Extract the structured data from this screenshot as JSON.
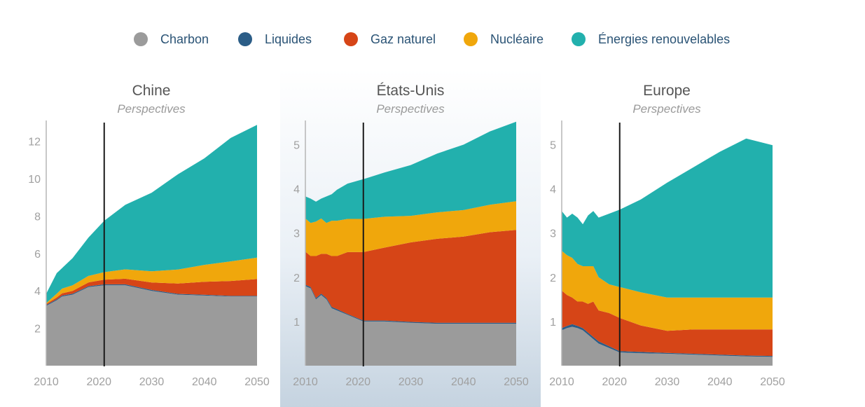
{
  "legend": [
    {
      "label": "Charbon",
      "color": "#9b9b9b"
    },
    {
      "label": "Liquides",
      "color": "#2b5d87"
    },
    {
      "label": "Gaz naturel",
      "color": "#d64517"
    },
    {
      "label": "Nucléaire",
      "color": "#f0a70c"
    },
    {
      "label": "Énergies renouvelables",
      "color": "#22b0ad"
    }
  ],
  "highlight_panel": "États-Unis",
  "chart_data": [
    {
      "type": "area",
      "stacked": true,
      "title": "Chine",
      "subtitle": "Perspectives",
      "xlim": [
        2010,
        2050
      ],
      "ylim": [
        0,
        13
      ],
      "xticks": [
        2010,
        2020,
        2030,
        2040,
        2050
      ],
      "yticks": [
        2,
        4,
        6,
        8,
        10,
        12
      ],
      "marker_year": 2021,
      "x": [
        2010,
        2012,
        2013,
        2015,
        2018,
        2021,
        2025,
        2030,
        2035,
        2040,
        2045,
        2050
      ],
      "series": [
        {
          "name": "Charbon",
          "values": [
            3.2,
            3.5,
            3.7,
            3.8,
            4.2,
            4.3,
            4.3,
            4.0,
            3.8,
            3.75,
            3.7,
            3.7
          ]
        },
        {
          "name": "Liquides",
          "values": [
            0.05,
            0.05,
            0.05,
            0.05,
            0.05,
            0.05,
            0.05,
            0.05,
            0.04,
            0.04,
            0.03,
            0.03
          ]
        },
        {
          "name": "Gaz naturel",
          "values": [
            0.05,
            0.1,
            0.12,
            0.15,
            0.2,
            0.25,
            0.3,
            0.4,
            0.55,
            0.7,
            0.8,
            0.9
          ]
        },
        {
          "name": "Nucléaire",
          "values": [
            0.05,
            0.2,
            0.25,
            0.3,
            0.35,
            0.4,
            0.5,
            0.6,
            0.75,
            0.9,
            1.05,
            1.15
          ]
        },
        {
          "name": "Énergies renouvelables",
          "values": [
            0.5,
            1.1,
            1.1,
            1.45,
            2.05,
            2.75,
            3.45,
            4.2,
            5.1,
            5.7,
            6.6,
            7.1
          ]
        }
      ]
    },
    {
      "type": "area",
      "stacked": true,
      "title": "États-Unis",
      "subtitle": "Perspectives",
      "xlim": [
        2010,
        2050
      ],
      "ylim": [
        0,
        5.5
      ],
      "xticks": [
        2010,
        2020,
        2030,
        2040,
        2050
      ],
      "yticks": [
        1,
        2,
        3,
        4,
        5
      ],
      "marker_year": 2021,
      "x": [
        2010,
        2011,
        2012,
        2013,
        2014,
        2015,
        2016,
        2018,
        2021,
        2025,
        2030,
        2035,
        2040,
        2045,
        2050
      ],
      "series": [
        {
          "name": "Charbon",
          "values": [
            1.8,
            1.75,
            1.5,
            1.6,
            1.5,
            1.3,
            1.25,
            1.15,
            1.0,
            1.0,
            0.97,
            0.95,
            0.95,
            0.95,
            0.95
          ]
        },
        {
          "name": "Liquides",
          "values": [
            0.03,
            0.03,
            0.03,
            0.03,
            0.03,
            0.03,
            0.03,
            0.02,
            0.02,
            0.02,
            0.02,
            0.02,
            0.02,
            0.02,
            0.02
          ]
        },
        {
          "name": "Gaz naturel",
          "values": [
            0.75,
            0.7,
            0.95,
            0.9,
            1.0,
            1.15,
            1.2,
            1.4,
            1.55,
            1.65,
            1.8,
            1.9,
            1.95,
            2.05,
            2.1
          ]
        },
        {
          "name": "Nucléaire",
          "values": [
            0.75,
            0.75,
            0.78,
            0.8,
            0.7,
            0.8,
            0.8,
            0.75,
            0.75,
            0.7,
            0.6,
            0.6,
            0.6,
            0.62,
            0.65
          ]
        },
        {
          "name": "Énergies renouvelables",
          "values": [
            0.5,
            0.55,
            0.45,
            0.45,
            0.6,
            0.6,
            0.7,
            0.8,
            0.9,
            1.0,
            1.15,
            1.33,
            1.48,
            1.66,
            1.8
          ]
        }
      ]
    },
    {
      "type": "area",
      "stacked": true,
      "title": "Europe",
      "subtitle": "Perspectives",
      "xlim": [
        2010,
        2050
      ],
      "ylim": [
        0,
        5.5
      ],
      "xticks": [
        2010,
        2020,
        2030,
        2040,
        2050
      ],
      "yticks": [
        1,
        2,
        3,
        4,
        5
      ],
      "marker_year": 2021,
      "x": [
        2010,
        2011,
        2012,
        2013,
        2014,
        2015,
        2016,
        2017,
        2019,
        2021,
        2025,
        2030,
        2035,
        2040,
        2045,
        2050
      ],
      "series": [
        {
          "name": "Charbon",
          "values": [
            0.8,
            0.85,
            0.88,
            0.85,
            0.8,
            0.7,
            0.6,
            0.5,
            0.4,
            0.3,
            0.28,
            0.27,
            0.25,
            0.23,
            0.21,
            0.2
          ]
        },
        {
          "name": "Liquides",
          "values": [
            0.05,
            0.05,
            0.06,
            0.05,
            0.05,
            0.05,
            0.05,
            0.05,
            0.04,
            0.03,
            0.03,
            0.02,
            0.02,
            0.02,
            0.02,
            0.02
          ]
        },
        {
          "name": "Gaz naturel",
          "values": [
            0.85,
            0.7,
            0.6,
            0.55,
            0.6,
            0.65,
            0.8,
            0.7,
            0.75,
            0.75,
            0.6,
            0.5,
            0.55,
            0.57,
            0.59,
            0.6
          ]
        },
        {
          "name": "Nucléaire",
          "values": [
            0.9,
            0.9,
            0.9,
            0.85,
            0.8,
            0.85,
            0.8,
            0.75,
            0.65,
            0.7,
            0.75,
            0.75,
            0.72,
            0.72,
            0.72,
            0.72
          ]
        },
        {
          "name": "Énergies renouvelables",
          "values": [
            0.9,
            0.85,
            1.0,
            1.05,
            0.95,
            1.15,
            1.25,
            1.35,
            1.6,
            1.75,
            2.1,
            2.6,
            2.95,
            3.3,
            3.6,
            3.45
          ]
        }
      ]
    }
  ]
}
